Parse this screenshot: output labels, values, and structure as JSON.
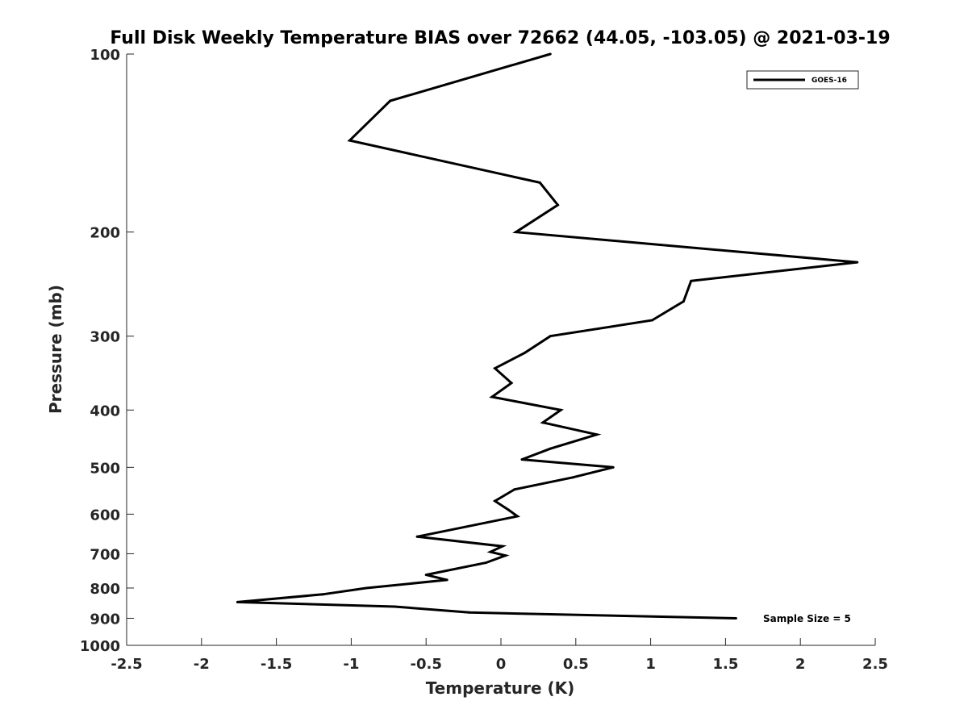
{
  "chart_data": {
    "type": "line",
    "title": "Full Disk Weekly Temperature BIAS over 72662 (44.05, -103.05) @ 2021-03-19",
    "xlabel": "Temperature (K)",
    "ylabel": "Pressure (mb)",
    "xlim": [
      -2.5,
      2.5
    ],
    "ylim": [
      100,
      1000
    ],
    "y_scale": "log",
    "y_reversed": true,
    "x_ticks": [
      -2.5,
      -2,
      -1.5,
      -1,
      -0.5,
      0,
      0.5,
      1,
      1.5,
      2,
      2.5
    ],
    "x_tick_labels": [
      "-2.5",
      "-2",
      "-1.5",
      "-1",
      "-0.5",
      "0",
      "0.5",
      "1",
      "1.5",
      "2",
      "2.5"
    ],
    "y_ticks": [
      100,
      200,
      300,
      400,
      500,
      600,
      700,
      800,
      900,
      1000
    ],
    "y_tick_labels": [
      "100",
      "200",
      "300",
      "400",
      "500",
      "600",
      "700",
      "800",
      "900",
      "1000"
    ],
    "grid": false,
    "legend": {
      "position": "top-right",
      "entries": [
        "GOES-16"
      ]
    },
    "annotation": "Sample Size = 5",
    "series": [
      {
        "name": "GOES-16",
        "color": "#000000",
        "points": [
          {
            "x": 0.33,
            "y": 100
          },
          {
            "x": -0.74,
            "y": 120
          },
          {
            "x": -1.01,
            "y": 140
          },
          {
            "x": 0.26,
            "y": 165
          },
          {
            "x": 0.38,
            "y": 180
          },
          {
            "x": 0.1,
            "y": 200
          },
          {
            "x": 2.38,
            "y": 225
          },
          {
            "x": 1.27,
            "y": 242
          },
          {
            "x": 1.22,
            "y": 262
          },
          {
            "x": 1.01,
            "y": 282
          },
          {
            "x": 0.33,
            "y": 300
          },
          {
            "x": 0.16,
            "y": 320
          },
          {
            "x": -0.04,
            "y": 340
          },
          {
            "x": 0.07,
            "y": 360
          },
          {
            "x": -0.06,
            "y": 380
          },
          {
            "x": 0.4,
            "y": 400
          },
          {
            "x": 0.28,
            "y": 420
          },
          {
            "x": 0.64,
            "y": 440
          },
          {
            "x": 0.33,
            "y": 465
          },
          {
            "x": 0.14,
            "y": 485
          },
          {
            "x": 0.75,
            "y": 500
          },
          {
            "x": 0.48,
            "y": 520
          },
          {
            "x": 0.09,
            "y": 545
          },
          {
            "x": -0.04,
            "y": 570
          },
          {
            "x": 0.05,
            "y": 590
          },
          {
            "x": 0.11,
            "y": 605
          },
          {
            "x": -0.56,
            "y": 655
          },
          {
            "x": 0.01,
            "y": 680
          },
          {
            "x": -0.07,
            "y": 695
          },
          {
            "x": 0.03,
            "y": 705
          },
          {
            "x": -0.1,
            "y": 725
          },
          {
            "x": -0.5,
            "y": 760
          },
          {
            "x": -0.36,
            "y": 775
          },
          {
            "x": -0.9,
            "y": 800
          },
          {
            "x": -1.19,
            "y": 820
          },
          {
            "x": -1.76,
            "y": 845
          },
          {
            "x": -0.71,
            "y": 860
          },
          {
            "x": -0.21,
            "y": 880
          },
          {
            "x": 1.57,
            "y": 900
          }
        ]
      }
    ]
  }
}
